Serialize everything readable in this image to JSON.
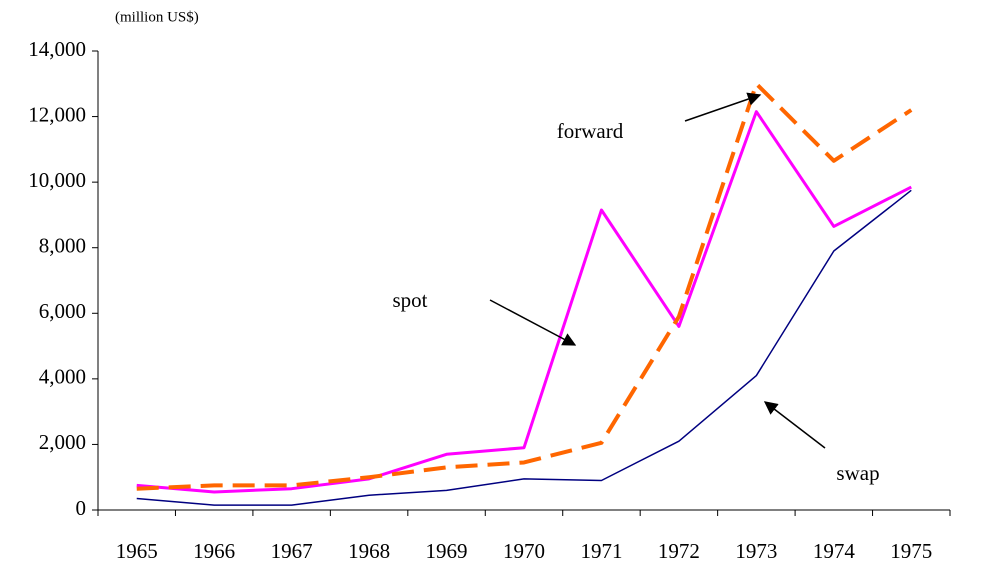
{
  "chart_data": {
    "type": "line",
    "y_label": "(million US$)",
    "categories": [
      "1965",
      "1966",
      "1967",
      "1968",
      "1969",
      "1970",
      "1971",
      "1972",
      "1973",
      "1974",
      "1975"
    ],
    "series": [
      {
        "name": "spot",
        "color": "#ff00ff",
        "dashed": false,
        "values": [
          750,
          550,
          650,
          950,
          1700,
          1900,
          9150,
          5600,
          12150,
          8650,
          9850
        ]
      },
      {
        "name": "forward",
        "color": "#ff6600",
        "dashed": true,
        "values": [
          650,
          750,
          750,
          1000,
          1300,
          1450,
          2050,
          5900,
          13000,
          10650,
          12200
        ]
      },
      {
        "name": "swap",
        "color": "#000080",
        "dashed": false,
        "values": [
          350,
          150,
          150,
          450,
          600,
          950,
          900,
          2100,
          4100,
          7900,
          9750
        ]
      }
    ],
    "ylim": [
      0,
      14000
    ],
    "yticks": [
      0,
      {
        "value": 2000,
        "label": "2,000"
      },
      {
        "value": 4000,
        "label": "4,000"
      },
      {
        "value": 6000,
        "label": "6,000"
      },
      {
        "value": 8000,
        "label": "8,000"
      },
      {
        "value": 10000,
        "label": "10,000"
      },
      {
        "value": 12000,
        "label": "12,000"
      },
      {
        "value": 14000,
        "label": "14,000"
      }
    ],
    "grid": false
  }
}
